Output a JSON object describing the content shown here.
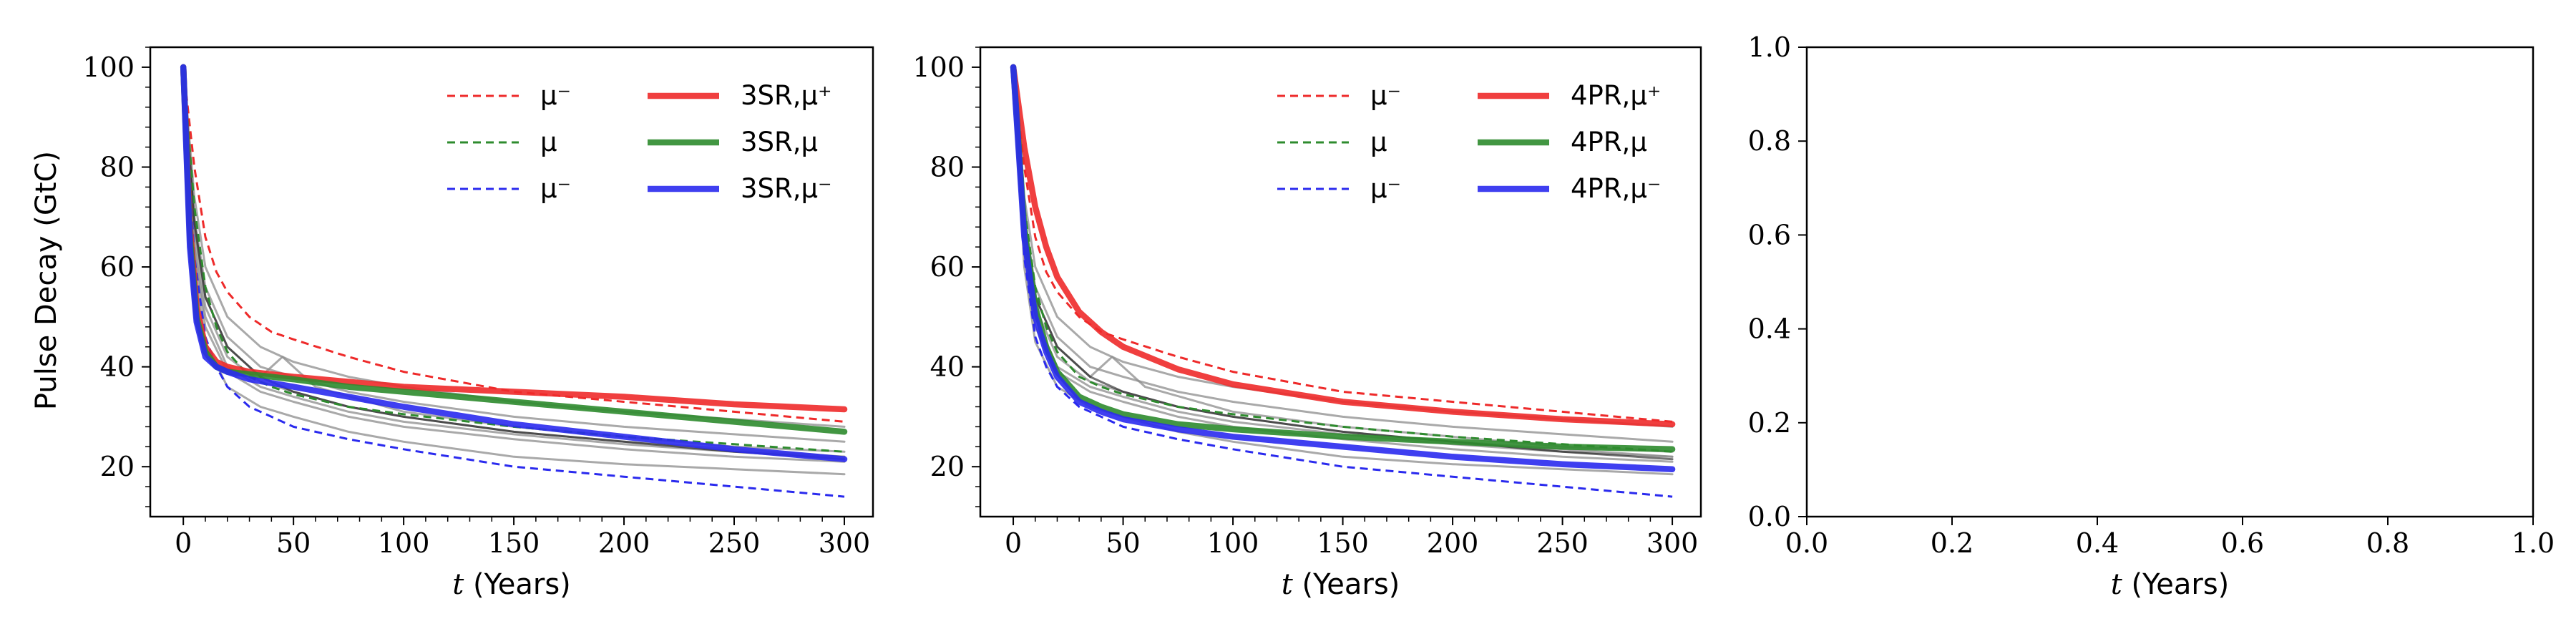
{
  "figure": {
    "ylabel": "Pulse Decay (GtC)",
    "xlabel_italic": "t",
    "xlabel_rest": " (Years)"
  },
  "colors": {
    "red": "#ee2a2a",
    "green": "#2e8b2e",
    "blue": "#2a2aee",
    "gray": "#8c8c8c",
    "black": "#000000"
  },
  "chart_data": [
    {
      "type": "line",
      "xlabel": "t (Years)",
      "ylabel": "Pulse Decay (GtC)",
      "xlim": [
        -15,
        313
      ],
      "ylim": [
        10,
        104
      ],
      "xticks": [
        0,
        50,
        100,
        150,
        200,
        250,
        300
      ],
      "yticks": [
        20,
        40,
        60,
        80,
        100
      ],
      "legend_placement": "top-right",
      "legend": [
        {
          "label": "μ⁻",
          "style": "dashed",
          "color": "red"
        },
        {
          "label": "μ",
          "style": "dashed",
          "color": "green"
        },
        {
          "label": "μ⁻",
          "style": "dashed",
          "color": "blue"
        },
        {
          "label": "3SR,μ⁺",
          "style": "solid",
          "color": "red"
        },
        {
          "label": "3SR,μ",
          "style": "solid",
          "color": "green"
        },
        {
          "label": "3SR,μ⁻",
          "style": "solid",
          "color": "blue"
        }
      ],
      "series": [
        {
          "name": "μ⁻",
          "color": "red",
          "style": "dashed",
          "x": [
            0,
            5,
            10,
            15,
            20,
            30,
            40,
            50,
            75,
            100,
            150,
            200,
            250,
            300
          ],
          "values": [
            100,
            80,
            66,
            59,
            55,
            50,
            47,
            45.5,
            42,
            39,
            35,
            33,
            31,
            29
          ]
        },
        {
          "name": "μ",
          "color": "green",
          "style": "dashed",
          "x": [
            0,
            5,
            10,
            15,
            20,
            30,
            40,
            50,
            75,
            100,
            150,
            200,
            250,
            300
          ],
          "values": [
            100,
            72,
            56,
            48,
            43,
            38,
            36,
            34.5,
            32,
            30.5,
            28,
            26,
            24.5,
            23
          ]
        },
        {
          "name": "μ⁻",
          "color": "blue",
          "style": "dashed",
          "x": [
            0,
            5,
            10,
            15,
            20,
            30,
            40,
            50,
            75,
            100,
            150,
            200,
            250,
            300
          ],
          "values": [
            100,
            62,
            46,
            40,
            36,
            32,
            30,
            28,
            25.5,
            23.5,
            20,
            18,
            16,
            14
          ]
        },
        {
          "name": "3SR,μ⁺",
          "color": "red",
          "style": "solid",
          "x": [
            0,
            3,
            6,
            10,
            15,
            20,
            30,
            50,
            75,
            100,
            150,
            200,
            250,
            300
          ],
          "values": [
            100,
            68,
            52,
            44,
            41,
            40,
            39,
            38,
            37,
            36,
            35,
            34,
            32.5,
            31.5
          ]
        },
        {
          "name": "3SR,μ",
          "color": "green",
          "style": "solid",
          "x": [
            0,
            3,
            6,
            10,
            15,
            20,
            30,
            50,
            75,
            100,
            150,
            200,
            250,
            300
          ],
          "values": [
            100,
            66,
            50,
            43,
            40,
            39,
            38.5,
            37.5,
            36,
            35,
            33,
            31,
            29,
            27
          ]
        },
        {
          "name": "3SR,μ⁻",
          "color": "blue",
          "style": "solid",
          "x": [
            0,
            3,
            6,
            10,
            15,
            20,
            30,
            50,
            75,
            100,
            150,
            200,
            250,
            300
          ],
          "values": [
            100,
            64,
            49,
            42,
            40,
            39,
            37.5,
            36,
            34,
            32,
            28.5,
            26,
            23.5,
            21.5
          ]
        },
        {
          "color": "gray",
          "style": "thin",
          "x": [
            0,
            5,
            10,
            20,
            35,
            50,
            75,
            100,
            150,
            200,
            250,
            300
          ],
          "values": [
            100,
            70,
            56,
            46,
            40,
            38,
            35,
            33,
            30,
            28,
            26.5,
            25
          ]
        },
        {
          "color": "gray",
          "style": "thin",
          "x": [
            0,
            5,
            10,
            20,
            35,
            50,
            75,
            100,
            150,
            200,
            250,
            300
          ],
          "values": [
            100,
            66,
            52,
            42,
            37,
            35,
            32,
            30,
            27,
            25,
            23.5,
            22
          ]
        },
        {
          "color": "gray",
          "style": "thin",
          "x": [
            0,
            5,
            10,
            20,
            35,
            50,
            75,
            100,
            150,
            200,
            250,
            300
          ],
          "values": [
            100,
            63,
            48,
            39,
            35,
            33,
            30,
            28,
            25.5,
            23.5,
            22,
            21
          ]
        },
        {
          "color": "gray",
          "style": "thin",
          "x": [
            0,
            5,
            10,
            20,
            35,
            45,
            60,
            100,
            150,
            200,
            250,
            300
          ],
          "values": [
            100,
            68,
            54,
            44,
            38,
            42,
            36,
            31,
            28,
            26,
            24,
            23
          ]
        },
        {
          "color": "gray",
          "style": "thin",
          "x": [
            0,
            5,
            10,
            20,
            35,
            50,
            75,
            100,
            150,
            200,
            250,
            300
          ],
          "values": [
            100,
            60,
            45,
            36,
            32,
            30,
            27,
            25,
            22,
            20.5,
            19.5,
            18.5
          ]
        },
        {
          "color": "gray",
          "style": "thin",
          "x": [
            0,
            5,
            10,
            20,
            35,
            50,
            75,
            100,
            150,
            200,
            250,
            300
          ],
          "values": [
            100,
            74,
            60,
            50,
            44,
            41,
            38,
            36,
            33,
            31,
            29.5,
            28
          ]
        },
        {
          "color": "gray",
          "style": "thin",
          "x": [
            0,
            5,
            10,
            20,
            35,
            50,
            75,
            100,
            150,
            200,
            250,
            300
          ],
          "values": [
            100,
            64,
            50,
            40,
            36,
            34,
            31,
            29,
            26.5,
            24.5,
            23,
            22
          ]
        },
        {
          "color": "black",
          "style": "thin",
          "x": [
            0,
            5,
            10,
            20,
            35,
            50,
            75,
            100,
            150,
            200,
            250,
            300
          ],
          "values": [
            100,
            69,
            54,
            44,
            38,
            35,
            32,
            30,
            27,
            25,
            23,
            21.5
          ]
        }
      ]
    },
    {
      "type": "line",
      "xlabel": "t (Years)",
      "ylabel": "",
      "xlim": [
        -15,
        313
      ],
      "ylim": [
        10,
        104
      ],
      "xticks": [
        0,
        50,
        100,
        150,
        200,
        250,
        300
      ],
      "yticks": [
        20,
        40,
        60,
        80,
        100
      ],
      "legend_placement": "top-right",
      "legend": [
        {
          "label": "μ⁻",
          "style": "dashed",
          "color": "red"
        },
        {
          "label": "μ",
          "style": "dashed",
          "color": "green"
        },
        {
          "label": "μ⁻",
          "style": "dashed",
          "color": "blue"
        },
        {
          "label": "4PR,μ⁺",
          "style": "solid",
          "color": "red"
        },
        {
          "label": "4PR,μ",
          "style": "solid",
          "color": "green"
        },
        {
          "label": "4PR,μ⁻",
          "style": "solid",
          "color": "blue"
        }
      ],
      "series": [
        {
          "name": "μ⁻",
          "color": "red",
          "style": "dashed",
          "x": [
            0,
            5,
            10,
            15,
            20,
            30,
            40,
            50,
            75,
            100,
            150,
            200,
            250,
            300
          ],
          "values": [
            100,
            80,
            66,
            59,
            55,
            50,
            47,
            45.5,
            42,
            39,
            35,
            33,
            31,
            29
          ]
        },
        {
          "name": "μ",
          "color": "green",
          "style": "dashed",
          "x": [
            0,
            5,
            10,
            15,
            20,
            30,
            40,
            50,
            75,
            100,
            150,
            200,
            250,
            300
          ],
          "values": [
            100,
            72,
            56,
            48,
            43,
            38,
            36,
            34.5,
            32,
            30.5,
            28,
            26,
            24.5,
            23
          ]
        },
        {
          "name": "μ⁻",
          "color": "blue",
          "style": "dashed",
          "x": [
            0,
            5,
            10,
            15,
            20,
            30,
            40,
            50,
            75,
            100,
            150,
            200,
            250,
            300
          ],
          "values": [
            100,
            62,
            46,
            40,
            36,
            32,
            30,
            28,
            25.5,
            23.5,
            20,
            18,
            16,
            14
          ]
        },
        {
          "name": "4PR,μ⁺",
          "color": "red",
          "style": "solid",
          "x": [
            0,
            5,
            10,
            15,
            20,
            30,
            40,
            50,
            75,
            100,
            150,
            200,
            250,
            300
          ],
          "values": [
            100,
            84,
            72,
            64,
            58,
            51,
            47,
            44,
            39.5,
            36.5,
            33,
            31,
            29.5,
            28.5
          ]
        },
        {
          "name": "4PR,μ",
          "color": "green",
          "style": "solid",
          "x": [
            0,
            5,
            10,
            15,
            20,
            30,
            40,
            50,
            75,
            100,
            150,
            200,
            250,
            300
          ],
          "values": [
            100,
            68,
            52,
            44,
            39,
            34,
            32,
            30.5,
            28.5,
            27.5,
            26,
            25,
            24,
            23.5
          ]
        },
        {
          "name": "4PR,μ⁻",
          "color": "blue",
          "style": "solid",
          "x": [
            0,
            5,
            10,
            15,
            20,
            30,
            40,
            50,
            75,
            100,
            150,
            200,
            250,
            300
          ],
          "values": [
            100,
            66,
            50,
            43,
            38,
            33,
            31,
            29.5,
            27.5,
            26,
            24,
            22,
            20.5,
            19.5
          ]
        },
        {
          "color": "gray",
          "style": "thin",
          "x": [
            0,
            5,
            10,
            20,
            35,
            50,
            75,
            100,
            150,
            200,
            250,
            300
          ],
          "values": [
            100,
            70,
            56,
            46,
            40,
            38,
            35,
            33,
            30,
            28,
            26.5,
            25
          ]
        },
        {
          "color": "gray",
          "style": "thin",
          "x": [
            0,
            5,
            10,
            20,
            35,
            50,
            75,
            100,
            150,
            200,
            250,
            300
          ],
          "values": [
            100,
            66,
            52,
            42,
            37,
            35,
            32,
            30,
            27,
            25,
            23.5,
            22
          ]
        },
        {
          "color": "gray",
          "style": "thin",
          "x": [
            0,
            5,
            10,
            20,
            35,
            50,
            75,
            100,
            150,
            200,
            250,
            300
          ],
          "values": [
            100,
            63,
            48,
            39,
            35,
            33,
            30,
            28,
            25.5,
            23.5,
            22,
            21
          ]
        },
        {
          "color": "gray",
          "style": "thin",
          "x": [
            0,
            5,
            10,
            20,
            35,
            45,
            60,
            100,
            150,
            200,
            250,
            300
          ],
          "values": [
            100,
            68,
            54,
            44,
            38,
            42,
            36,
            31,
            28,
            26,
            24,
            23
          ]
        },
        {
          "color": "gray",
          "style": "thin",
          "x": [
            0,
            5,
            10,
            20,
            35,
            50,
            75,
            100,
            150,
            200,
            250,
            300
          ],
          "values": [
            100,
            60,
            45,
            36,
            32,
            30,
            27,
            25,
            22,
            20.5,
            19.5,
            18.5
          ]
        },
        {
          "color": "gray",
          "style": "thin",
          "x": [
            0,
            5,
            10,
            20,
            35,
            50,
            75,
            100,
            150,
            200,
            250,
            300
          ],
          "values": [
            100,
            74,
            60,
            50,
            44,
            41,
            38,
            36,
            33,
            31,
            29.5,
            28
          ]
        },
        {
          "color": "gray",
          "style": "thin",
          "x": [
            0,
            5,
            10,
            20,
            35,
            50,
            75,
            100,
            150,
            200,
            250,
            300
          ],
          "values": [
            100,
            64,
            50,
            40,
            36,
            34,
            31,
            29,
            26.5,
            24.5,
            23,
            22
          ]
        },
        {
          "color": "black",
          "style": "thin",
          "x": [
            0,
            5,
            10,
            20,
            35,
            50,
            75,
            100,
            150,
            200,
            250,
            300
          ],
          "values": [
            100,
            69,
            54,
            44,
            38,
            35,
            32,
            30,
            27,
            25,
            23,
            21.5
          ]
        }
      ]
    },
    {
      "type": "line",
      "xlabel": "t (Years)",
      "ylabel": "",
      "xlim": [
        0,
        1
      ],
      "ylim": [
        0,
        1
      ],
      "xticks": [
        0.0,
        0.2,
        0.4,
        0.6,
        0.8,
        1.0
      ],
      "yticks": [
        0.0,
        0.2,
        0.4,
        0.6,
        0.8,
        1.0
      ],
      "series": []
    }
  ]
}
